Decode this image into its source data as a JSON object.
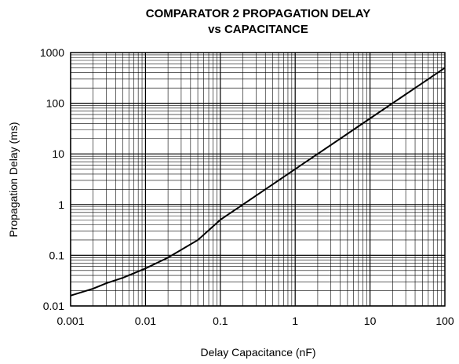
{
  "chart_data": {
    "type": "line",
    "title": [
      "COMPARATOR 2 PROPAGATION DELAY",
      "vs CAPACITANCE"
    ],
    "xlabel": "Delay Capacitance (nF)",
    "ylabel": "Propagation Delay (ms)",
    "x_scale": "log",
    "y_scale": "log",
    "xlim": [
      0.001,
      100
    ],
    "ylim": [
      0.01,
      1000
    ],
    "grid": true,
    "x_tick_labels": [
      "0.001",
      "0.01",
      "0.1",
      "1",
      "10",
      "100"
    ],
    "y_tick_labels": [
      "0.01",
      "0.1",
      "1",
      "10",
      "100",
      "1000"
    ],
    "series": [
      {
        "x": [
          0.001,
          0.002,
          0.003,
          0.005,
          0.01,
          0.02,
          0.05,
          0.1,
          0.2,
          0.5,
          1,
          2,
          5,
          10,
          20,
          50,
          100
        ],
        "y": [
          0.016,
          0.022,
          0.028,
          0.036,
          0.055,
          0.09,
          0.2,
          0.5,
          1,
          2.5,
          5,
          10,
          25,
          50,
          100,
          250,
          500
        ]
      }
    ]
  }
}
